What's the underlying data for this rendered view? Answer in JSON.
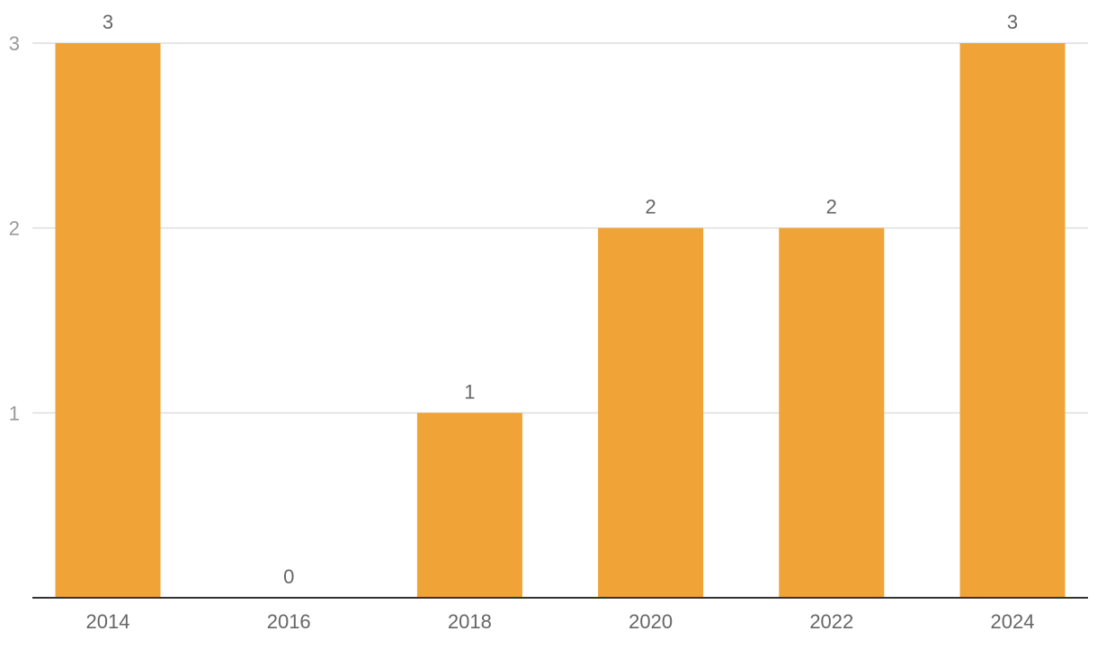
{
  "chart_data": {
    "type": "bar",
    "categories": [
      "2014",
      "2016",
      "2018",
      "2020",
      "2022",
      "2024"
    ],
    "values": [
      3,
      0,
      1,
      2,
      2,
      3
    ],
    "yticks": [
      1,
      2,
      3
    ],
    "ylim": [
      0,
      3
    ],
    "bar_color": "#F0A336",
    "grid": true,
    "title": "",
    "xlabel": "",
    "ylabel": ""
  }
}
